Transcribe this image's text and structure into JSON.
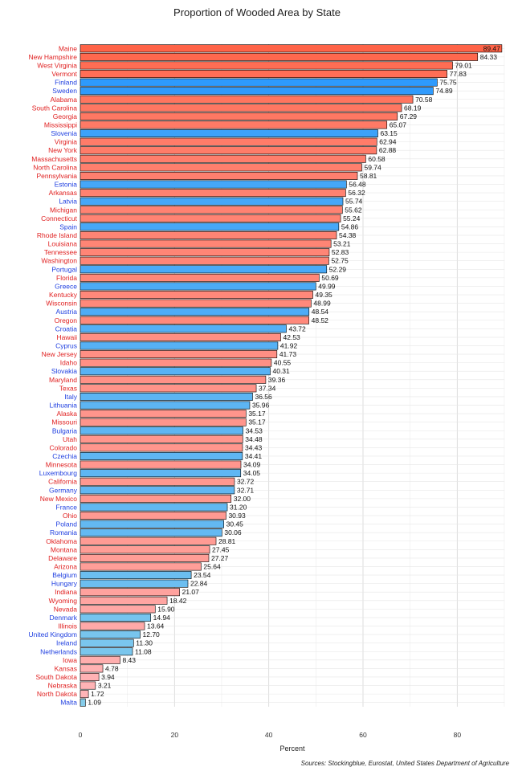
{
  "chart_data": {
    "type": "bar",
    "orientation": "horizontal",
    "title": "Proportion of Wooded Area by State",
    "xlabel": "Percent",
    "ylabel": "",
    "xlim": [
      0,
      90
    ],
    "x_ticks": [
      "0",
      "20",
      "40",
      "60",
      "80"
    ],
    "grid": true,
    "source": "Sources: Stockingblue, Eurostat, United States Department of Agriculture",
    "colors": {
      "us_high": "#ff6347",
      "us_low": "#ffb6b9",
      "eu_high": "#1e90ff",
      "eu_low": "#87ceeb",
      "us_label": "#e02020",
      "eu_label": "#1f3fe0"
    },
    "bars": [
      {
        "label": "Maine",
        "value": 89.47,
        "value_text": "89.47",
        "group": "us"
      },
      {
        "label": "New Hampshire",
        "value": 84.33,
        "value_text": "84.33",
        "group": "us"
      },
      {
        "label": "West Virginia",
        "value": 79.01,
        "value_text": "79.01",
        "group": "us"
      },
      {
        "label": "Vermont",
        "value": 77.83,
        "value_text": "77.83",
        "group": "us"
      },
      {
        "label": "Finland",
        "value": 75.75,
        "value_text": "75.75",
        "group": "eu"
      },
      {
        "label": "Sweden",
        "value": 74.89,
        "value_text": "74.89",
        "group": "eu"
      },
      {
        "label": "Alabama",
        "value": 70.58,
        "value_text": "70.58",
        "group": "us"
      },
      {
        "label": "South Carolina",
        "value": 68.19,
        "value_text": "68.19",
        "group": "us"
      },
      {
        "label": "Georgia",
        "value": 67.29,
        "value_text": "67.29",
        "group": "us"
      },
      {
        "label": "Mississippi",
        "value": 65.07,
        "value_text": "65.07",
        "group": "us"
      },
      {
        "label": "Slovenia",
        "value": 63.15,
        "value_text": "63.15",
        "group": "eu"
      },
      {
        "label": "Virginia",
        "value": 62.94,
        "value_text": "62.94",
        "group": "us"
      },
      {
        "label": "New York",
        "value": 62.88,
        "value_text": "62.88",
        "group": "us"
      },
      {
        "label": "Massachusetts",
        "value": 60.58,
        "value_text": "60.58",
        "group": "us"
      },
      {
        "label": "North Carolina",
        "value": 59.74,
        "value_text": "59.74",
        "group": "us"
      },
      {
        "label": "Pennsylvania",
        "value": 58.81,
        "value_text": "58.81",
        "group": "us"
      },
      {
        "label": "Estonia",
        "value": 56.48,
        "value_text": "56.48",
        "group": "eu"
      },
      {
        "label": "Arkansas",
        "value": 56.32,
        "value_text": "56.32",
        "group": "us"
      },
      {
        "label": "Latvia",
        "value": 55.74,
        "value_text": "55.74",
        "group": "eu"
      },
      {
        "label": "Michigan",
        "value": 55.62,
        "value_text": "55.62",
        "group": "us"
      },
      {
        "label": "Connecticut",
        "value": 55.24,
        "value_text": "55.24",
        "group": "us"
      },
      {
        "label": "Spain",
        "value": 54.86,
        "value_text": "54.86",
        "group": "eu"
      },
      {
        "label": "Rhode Island",
        "value": 54.38,
        "value_text": "54.38",
        "group": "us"
      },
      {
        "label": "Louisiana",
        "value": 53.21,
        "value_text": "53.21",
        "group": "us"
      },
      {
        "label": "Tennessee",
        "value": 52.83,
        "value_text": "52.83",
        "group": "us"
      },
      {
        "label": "Washington",
        "value": 52.75,
        "value_text": "52.75",
        "group": "us"
      },
      {
        "label": "Portugal",
        "value": 52.29,
        "value_text": "52.29",
        "group": "eu"
      },
      {
        "label": "Florida",
        "value": 50.69,
        "value_text": "50.69",
        "group": "us"
      },
      {
        "label": "Greece",
        "value": 49.99,
        "value_text": "49.99",
        "group": "eu"
      },
      {
        "label": "Kentucky",
        "value": 49.35,
        "value_text": "49.35",
        "group": "us"
      },
      {
        "label": "Wisconsin",
        "value": 48.99,
        "value_text": "48.99",
        "group": "us"
      },
      {
        "label": "Austria",
        "value": 48.54,
        "value_text": "48.54",
        "group": "eu"
      },
      {
        "label": "Oregon",
        "value": 48.52,
        "value_text": "48.52",
        "group": "us"
      },
      {
        "label": "Croatia",
        "value": 43.72,
        "value_text": "43.72",
        "group": "eu"
      },
      {
        "label": "Hawaii",
        "value": 42.53,
        "value_text": "42.53",
        "group": "us"
      },
      {
        "label": "Cyprus",
        "value": 41.92,
        "value_text": "41.92",
        "group": "eu"
      },
      {
        "label": "New Jersey",
        "value": 41.73,
        "value_text": "41.73",
        "group": "us"
      },
      {
        "label": "Idaho",
        "value": 40.55,
        "value_text": "40.55",
        "group": "us"
      },
      {
        "label": "Slovakia",
        "value": 40.31,
        "value_text": "40.31",
        "group": "eu"
      },
      {
        "label": "Maryland",
        "value": 39.36,
        "value_text": "39.36",
        "group": "us"
      },
      {
        "label": "Texas",
        "value": 37.34,
        "value_text": "37.34",
        "group": "us"
      },
      {
        "label": "Italy",
        "value": 36.56,
        "value_text": "36.56",
        "group": "eu"
      },
      {
        "label": "Lithuania",
        "value": 35.96,
        "value_text": "35.96",
        "group": "eu"
      },
      {
        "label": "Alaska",
        "value": 35.17,
        "value_text": "35.17",
        "group": "us"
      },
      {
        "label": "Missouri",
        "value": 35.17,
        "value_text": "35.17",
        "group": "us"
      },
      {
        "label": "Bulgaria",
        "value": 34.53,
        "value_text": "34.53",
        "group": "eu"
      },
      {
        "label": "Utah",
        "value": 34.48,
        "value_text": "34.48",
        "group": "us"
      },
      {
        "label": "Colorado",
        "value": 34.43,
        "value_text": "34.43",
        "group": "us"
      },
      {
        "label": "Czechia",
        "value": 34.41,
        "value_text": "34.41",
        "group": "eu"
      },
      {
        "label": "Minnesota",
        "value": 34.09,
        "value_text": "34.09",
        "group": "us"
      },
      {
        "label": "Luxembourg",
        "value": 34.05,
        "value_text": "34.05",
        "group": "eu"
      },
      {
        "label": "California",
        "value": 32.72,
        "value_text": "32.72",
        "group": "us"
      },
      {
        "label": "Germany",
        "value": 32.71,
        "value_text": "32.71",
        "group": "eu"
      },
      {
        "label": "New Mexico",
        "value": 32.0,
        "value_text": "32.00",
        "group": "us"
      },
      {
        "label": "France",
        "value": 31.2,
        "value_text": "31.20",
        "group": "eu"
      },
      {
        "label": "Ohio",
        "value": 30.93,
        "value_text": "30.93",
        "group": "us"
      },
      {
        "label": "Poland",
        "value": 30.45,
        "value_text": "30.45",
        "group": "eu"
      },
      {
        "label": "Romania",
        "value": 30.06,
        "value_text": "30.06",
        "group": "eu"
      },
      {
        "label": "Oklahoma",
        "value": 28.81,
        "value_text": "28.81",
        "group": "us"
      },
      {
        "label": "Montana",
        "value": 27.45,
        "value_text": "27.45",
        "group": "us"
      },
      {
        "label": "Delaware",
        "value": 27.27,
        "value_text": "27.27",
        "group": "us"
      },
      {
        "label": "Arizona",
        "value": 25.64,
        "value_text": "25.64",
        "group": "us"
      },
      {
        "label": "Belgium",
        "value": 23.54,
        "value_text": "23.54",
        "group": "eu"
      },
      {
        "label": "Hungary",
        "value": 22.84,
        "value_text": "22.84",
        "group": "eu"
      },
      {
        "label": "Indiana",
        "value": 21.07,
        "value_text": "21.07",
        "group": "us"
      },
      {
        "label": "Wyoming",
        "value": 18.42,
        "value_text": "18.42",
        "group": "us"
      },
      {
        "label": "Nevada",
        "value": 15.9,
        "value_text": "15.90",
        "group": "us"
      },
      {
        "label": "Denmark",
        "value": 14.94,
        "value_text": "14.94",
        "group": "eu"
      },
      {
        "label": "Illinois",
        "value": 13.64,
        "value_text": "13.64",
        "group": "us"
      },
      {
        "label": "United Kingdom",
        "value": 12.7,
        "value_text": "12.70",
        "group": "eu"
      },
      {
        "label": "Ireland",
        "value": 11.3,
        "value_text": "11.30",
        "group": "eu"
      },
      {
        "label": "Netherlands",
        "value": 11.08,
        "value_text": "11.08",
        "group": "eu"
      },
      {
        "label": "Iowa",
        "value": 8.43,
        "value_text": "8.43",
        "group": "us"
      },
      {
        "label": "Kansas",
        "value": 4.78,
        "value_text": "4.78",
        "group": "us"
      },
      {
        "label": "South Dakota",
        "value": 3.94,
        "value_text": "3.94",
        "group": "us"
      },
      {
        "label": "Nebraska",
        "value": 3.21,
        "value_text": "3.21",
        "group": "us"
      },
      {
        "label": "North Dakota",
        "value": 1.72,
        "value_text": "1.72",
        "group": "us"
      },
      {
        "label": "Malta",
        "value": 1.09,
        "value_text": "1.09",
        "group": "eu"
      }
    ]
  }
}
